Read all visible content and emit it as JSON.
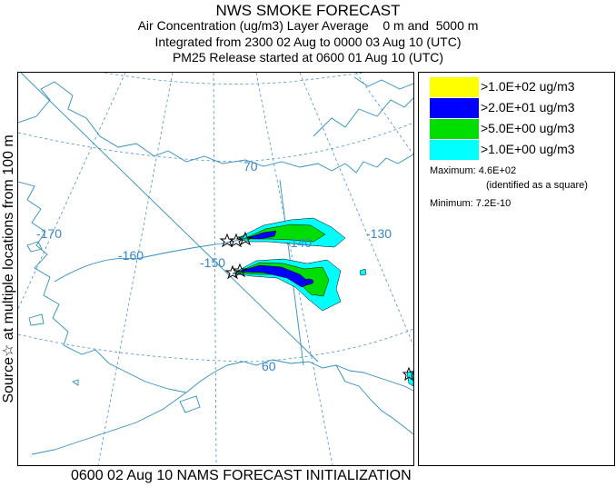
{
  "header": {
    "title": "NWS SMOKE FORECAST",
    "line2": "Air Concentration (ug/m3) Layer Average    0 m and  5000 m",
    "line3": "Integrated from 2300 02 Aug to 0000 03 Aug 10 (UTC)",
    "line4": "PM25 Release started at 0600 01 Aug 10 (UTC)"
  },
  "side_label": "Source☆ at multiple locations  from   100 m",
  "footer": "0600 02 Aug 10 NAMS FORECAST INITIALIZATION",
  "map": {
    "lon_labels": [
      "-170",
      "-160",
      "-150",
      "-140",
      "-130"
    ],
    "lat_labels": [
      "70",
      "60"
    ],
    "grid_color": "#4a8fd0",
    "coast_color": "#2f8fc0"
  },
  "legend": {
    "items": [
      {
        "label": ">1.0E+02 ug/m3",
        "color": "#ffff00"
      },
      {
        "label": ">2.0E+01 ug/m3",
        "color": "#0000ff"
      },
      {
        "label": ">5.0E+00 ug/m3",
        "color": "#00dd00"
      },
      {
        "label": ">1.0E+00 ug/m3",
        "color": "#00ffff"
      }
    ],
    "maximum_label": "Maximum:",
    "maximum_value": "4.6E+02",
    "maximum_note": "(identified as a square)",
    "minimum_label": "Minimum:",
    "minimum_value": "7.2E-10"
  }
}
